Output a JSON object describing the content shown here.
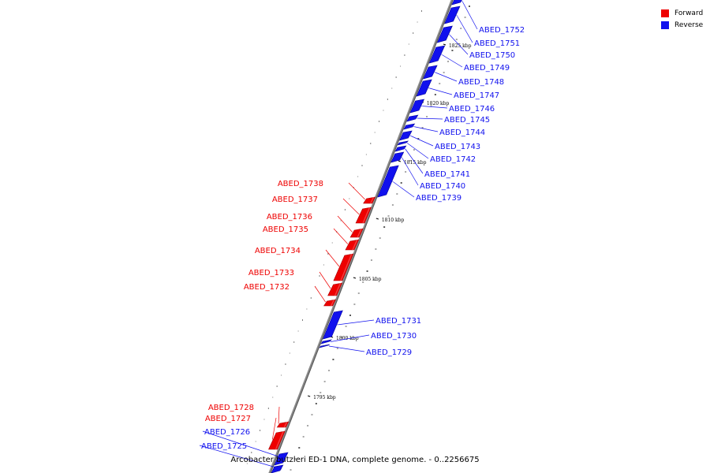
{
  "legend": [
    {
      "label": "Forward",
      "color": "#ee0000"
    },
    {
      "label": "Reverse",
      "color": "#1111ee"
    }
  ],
  "caption": "Arcobacter butzleri ED-1 DNA, complete genome. - 0..2256675",
  "scale": [
    "1825 kbp",
    "1820 kbp",
    "1815 kbp",
    "1810 kbp",
    "1805 kbp",
    "1800 kbp",
    "1795 kbp"
  ],
  "genes": [
    {
      "name": "ABED_1752",
      "strand": "reverse"
    },
    {
      "name": "ABED_1751",
      "strand": "reverse"
    },
    {
      "name": "ABED_1750",
      "strand": "reverse"
    },
    {
      "name": "ABED_1749",
      "strand": "reverse"
    },
    {
      "name": "ABED_1748",
      "strand": "reverse"
    },
    {
      "name": "ABED_1747",
      "strand": "reverse"
    },
    {
      "name": "ABED_1746",
      "strand": "reverse"
    },
    {
      "name": "ABED_1745",
      "strand": "reverse"
    },
    {
      "name": "ABED_1744",
      "strand": "reverse"
    },
    {
      "name": "ABED_1743",
      "strand": "reverse"
    },
    {
      "name": "ABED_1742",
      "strand": "reverse"
    },
    {
      "name": "ABED_1741",
      "strand": "reverse"
    },
    {
      "name": "ABED_1740",
      "strand": "reverse"
    },
    {
      "name": "ABED_1739",
      "strand": "reverse"
    },
    {
      "name": "ABED_1738",
      "strand": "forward"
    },
    {
      "name": "ABED_1737",
      "strand": "forward"
    },
    {
      "name": "ABED_1736",
      "strand": "forward"
    },
    {
      "name": "ABED_1735",
      "strand": "forward"
    },
    {
      "name": "ABED_1734",
      "strand": "forward"
    },
    {
      "name": "ABED_1733",
      "strand": "forward"
    },
    {
      "name": "ABED_1732",
      "strand": "forward"
    },
    {
      "name": "ABED_1731",
      "strand": "reverse"
    },
    {
      "name": "ABED_1730",
      "strand": "reverse"
    },
    {
      "name": "ABED_1729",
      "strand": "reverse"
    },
    {
      "name": "ABED_1728",
      "strand": "forward"
    },
    {
      "name": "ABED_1727",
      "strand": "forward"
    },
    {
      "name": "ABED_1726",
      "strand": "reverse"
    },
    {
      "name": "ABED_1725",
      "strand": "reverse"
    }
  ]
}
